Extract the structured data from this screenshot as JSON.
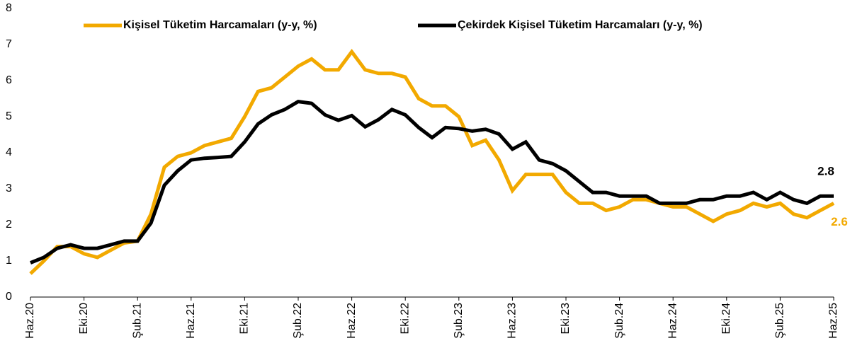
{
  "chart_data": {
    "type": "line",
    "categories": [
      "Haz.20",
      null,
      null,
      null,
      "Eki.20",
      null,
      null,
      null,
      "Şub.21",
      null,
      null,
      null,
      "Haz.21",
      null,
      null,
      null,
      "Eki.21",
      null,
      null,
      null,
      "Şub.22",
      null,
      null,
      null,
      "Haz.22",
      null,
      null,
      null,
      "Eki.22",
      null,
      null,
      null,
      "Şub.23",
      null,
      null,
      null,
      "Haz.23",
      null,
      null,
      null,
      "Eki.23",
      null,
      null,
      null,
      "Şub.24",
      null,
      null,
      null,
      "Haz.24",
      null,
      null,
      null,
      "Eki.24",
      null,
      null,
      null,
      "Şub.25",
      null,
      null,
      null,
      "Haz.25"
    ],
    "series": [
      {
        "name": "Kişisel Tüketim Harcamaları (y-y, %)",
        "color": "#f2a900",
        "values": [
          0.65,
          1.0,
          1.4,
          1.4,
          1.2,
          1.1,
          1.3,
          1.5,
          1.55,
          2.3,
          3.6,
          3.9,
          4.0,
          4.2,
          4.3,
          4.4,
          5.0,
          5.7,
          5.8,
          6.1,
          6.4,
          6.6,
          6.3,
          6.3,
          6.8,
          6.3,
          6.2,
          6.2,
          6.1,
          5.5,
          5.3,
          5.3,
          5.0,
          4.2,
          4.35,
          3.8,
          2.95,
          3.4,
          3.4,
          3.4,
          2.9,
          2.6,
          2.6,
          2.4,
          2.5,
          2.7,
          2.7,
          2.6,
          2.5,
          2.5,
          2.3,
          2.1,
          2.3,
          2.4,
          2.6,
          2.5,
          2.6,
          2.3,
          2.2,
          2.4,
          2.6
        ]
      },
      {
        "name": "Çekirdek Kişisel Tüketim Harcamaları (y-y, %)",
        "color": "#000000",
        "values": [
          0.95,
          1.1,
          1.35,
          1.45,
          1.35,
          1.35,
          1.45,
          1.55,
          1.55,
          2.05,
          3.1,
          3.5,
          3.8,
          3.85,
          3.87,
          3.9,
          4.3,
          4.8,
          5.05,
          5.2,
          5.42,
          5.37,
          5.05,
          4.9,
          5.03,
          4.72,
          4.92,
          5.2,
          5.05,
          4.7,
          4.42,
          4.7,
          4.67,
          4.6,
          4.65,
          4.52,
          4.1,
          4.3,
          3.8,
          3.7,
          3.5,
          3.2,
          2.9,
          2.9,
          2.8,
          2.8,
          2.8,
          2.6,
          2.6,
          2.6,
          2.7,
          2.7,
          2.8,
          2.8,
          2.9,
          2.7,
          2.9,
          2.7,
          2.6,
          2.8,
          2.8
        ]
      }
    ],
    "ylim": [
      0,
      8
    ],
    "yticks": [
      0,
      1,
      2,
      3,
      4,
      5,
      6,
      7,
      8
    ],
    "grid": false,
    "legend": "top"
  }
}
